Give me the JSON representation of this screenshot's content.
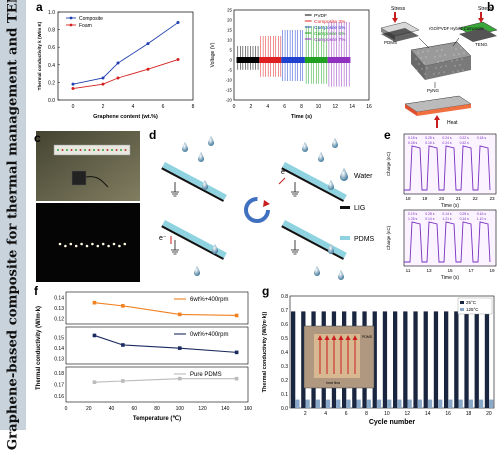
{
  "side_title": "Graphene-based composite for thermal management and TENG",
  "panels": {
    "a": "a",
    "b": "b",
    "c": "c",
    "d": "d",
    "e": "e",
    "f": "f",
    "g": "g"
  },
  "colors": {
    "composite": "#1f3fb0",
    "foam": "#d42020",
    "pvdf": "#000000",
    "c3": "#e02020",
    "c5": "#2040d0",
    "c6": "#20a020",
    "c7": "#9030c0",
    "lig": "#111111",
    "pdms": "#8fd3e0",
    "orange": "#f08020",
    "navy": "#1a2a5e",
    "gray": "#bbbbbb",
    "bar25": "#1a2640",
    "bar125": "#8aa8c8",
    "echarge": "#7a2fc0"
  },
  "chart_data": [
    {
      "id": "a-left",
      "type": "line",
      "xlabel": "Graphene content (wt.%)",
      "ylabel": "Thermal conductivity k (W/m K)",
      "xlim": [
        -1,
        8
      ],
      "ylim": [
        0.0,
        1.0
      ],
      "xticks": [
        "0",
        "2",
        "4",
        "6",
        "8"
      ],
      "yticks": [
        "0.0",
        "0.2",
        "0.4",
        "0.6",
        "0.8",
        "1.0"
      ],
      "x": [
        0,
        2,
        3,
        5,
        7
      ],
      "series": [
        {
          "name": "Composite",
          "values": [
            0.18,
            0.25,
            0.42,
            0.64,
            0.88
          ]
        },
        {
          "name": "Foam",
          "values": [
            0.13,
            0.18,
            0.25,
            0.35,
            0.46
          ]
        }
      ]
    },
    {
      "id": "a-right",
      "type": "line",
      "xlabel": "Time (s)",
      "ylabel": "Voltage (V)",
      "xlim": [
        0,
        16
      ],
      "ylim": [
        -20,
        25
      ],
      "xticks": [
        "0",
        "2",
        "4",
        "6",
        "8",
        "10",
        "12",
        "14",
        "16"
      ],
      "yticks": [
        "-20",
        "-15",
        "-10",
        "-5",
        "0",
        "5",
        "10",
        "15",
        "20",
        "25"
      ],
      "series": [
        {
          "name": "PVDF",
          "x_range": [
            0.3,
            3.0
          ],
          "amplitude": 7
        },
        {
          "name": "Composite 3%",
          "x_range": [
            3.0,
            5.6
          ],
          "amplitude": 12
        },
        {
          "name": "Composite 5%",
          "x_range": [
            5.6,
            8.4
          ],
          "amplitude": 15
        },
        {
          "name": "Composite 6%",
          "x_range": [
            8.4,
            11.1
          ],
          "amplitude": 17
        },
        {
          "name": "Composite 7%",
          "x_range": [
            11.1,
            13.8
          ],
          "amplitude": 19
        }
      ]
    },
    {
      "id": "e-top",
      "type": "line",
      "xlabel": "Time (s)",
      "ylabel": "Charge (nC)",
      "xticks": [
        "18",
        "19",
        "20",
        "21",
        "22",
        "23"
      ],
      "annotations": [
        "0.15 s",
        "0.25 s",
        "0.24 s",
        "0.22 s",
        "0.18 s",
        "0.28 s",
        "0.16 s",
        "0.24 s",
        "0.42 s"
      ]
    },
    {
      "id": "e-bottom",
      "type": "line",
      "xlabel": "Time (s)",
      "ylabel": "Charge (nC)",
      "xticks": [
        "11",
        "13",
        "15",
        "17",
        "19"
      ],
      "annotations": [
        "0.19 s",
        "0.28 s",
        "0.14 s",
        "0.25 s",
        "0.16 s",
        "1.25 s",
        "0.14 s",
        "1.21 s",
        "0.14 s",
        "1.10 s"
      ]
    },
    {
      "id": "f",
      "type": "line",
      "xlabel": "Temperature (℃)",
      "ylabel": "Thermal conductivity (W/m·k)",
      "xlim": [
        0,
        160
      ],
      "xticks": [
        "0",
        "20",
        "40",
        "60",
        "80",
        "100",
        "120",
        "140",
        "160"
      ],
      "x": [
        25,
        50,
        100,
        150
      ],
      "subplots": [
        {
          "name": "6wt%+400rpm",
          "yticks": [
            "0.12",
            "0.13",
            "0.14"
          ],
          "ylim": [
            0.115,
            0.145
          ],
          "values": [
            0.135,
            0.132,
            0.124,
            0.123
          ]
        },
        {
          "name": "0wt%+400rpm",
          "yticks": [
            "0.13",
            "0.14",
            "0.15"
          ],
          "ylim": [
            0.125,
            0.16
          ],
          "values": [
            0.152,
            0.143,
            0.14,
            0.136
          ]
        },
        {
          "name": "Pure PDMS",
          "yticks": [
            "0.16",
            "0.17",
            "0.18"
          ],
          "ylim": [
            0.155,
            0.185
          ],
          "values": [
            0.172,
            0.173,
            0.175,
            0.175
          ]
        }
      ]
    },
    {
      "id": "g",
      "type": "bar",
      "xlabel": "Cycle number",
      "ylabel": "Thermal conductivity (W/(m·k))",
      "ylim": [
        0.0,
        0.8
      ],
      "yticks": [
        "0.0",
        "0.1",
        "0.2",
        "0.3",
        "0.4",
        "0.5",
        "0.6",
        "0.7",
        "0.8"
      ],
      "xticks": [
        "2",
        "4",
        "6",
        "8",
        "10",
        "12",
        "14",
        "16",
        "18",
        "20"
      ],
      "series": [
        {
          "name": "25°C",
          "values": [
            0.69,
            0.69,
            0.69,
            0.69,
            0.69,
            0.69,
            0.69,
            0.69,
            0.69,
            0.69,
            0.69,
            0.69,
            0.69,
            0.69,
            0.69,
            0.69,
            0.69,
            0.69,
            0.69,
            0.69
          ]
        },
        {
          "name": "125°C",
          "values": [
            0.06,
            0.06,
            0.06,
            0.06,
            0.06,
            0.06,
            0.06,
            0.06,
            0.06,
            0.06,
            0.06,
            0.06,
            0.06,
            0.06,
            0.06,
            0.06,
            0.06,
            0.06,
            0.06,
            0.06
          ]
        }
      ]
    }
  ],
  "panel_b": {
    "stress_top": "Stress",
    "stress_bottom": "Stress",
    "pdms": "PDMS",
    "teng": "TENG",
    "composite": "rGO/PVDF Hybrid Composite",
    "pyng": "PyNG",
    "heat": "Heat"
  },
  "panel_d": {
    "water": "Water",
    "lig": "LIG",
    "pdms": "PDMS",
    "electron": "e⁻"
  },
  "panel_g_inset": {
    "pdms": "PDMS",
    "heat_flow": "heat flow"
  }
}
